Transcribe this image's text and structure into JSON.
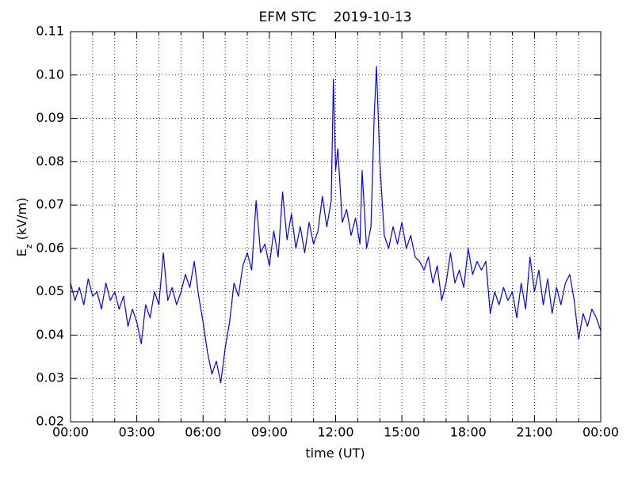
{
  "chart_data": {
    "type": "line",
    "title": "EFM STC    2019-10-13",
    "xlabel": "time (UT)",
    "ylabel": [
      "E",
      "z",
      " (kV/m)"
    ],
    "color": "#0000ff",
    "x": [
      0,
      0.2,
      0.4,
      0.6,
      0.8,
      1.0,
      1.2,
      1.4,
      1.6,
      1.8,
      2.0,
      2.2,
      2.4,
      2.6,
      2.8,
      3.0,
      3.2,
      3.4,
      3.6,
      3.8,
      4.0,
      4.2,
      4.4,
      4.6,
      4.8,
      5.0,
      5.2,
      5.4,
      5.6,
      5.8,
      6.0,
      6.2,
      6.4,
      6.6,
      6.8,
      7.0,
      7.2,
      7.4,
      7.6,
      7.8,
      8.0,
      8.2,
      8.4,
      8.6,
      8.8,
      9.0,
      9.2,
      9.4,
      9.6,
      9.8,
      10.0,
      10.2,
      10.4,
      10.6,
      10.8,
      11.0,
      11.2,
      11.4,
      11.6,
      11.8,
      11.9,
      12.0,
      12.1,
      12.3,
      12.5,
      12.7,
      12.9,
      13.1,
      13.2,
      13.4,
      13.6,
      13.75,
      13.85,
      14.0,
      14.2,
      14.4,
      14.6,
      14.8,
      15.0,
      15.2,
      15.4,
      15.6,
      15.8,
      16.0,
      16.2,
      16.4,
      16.6,
      16.8,
      17.0,
      17.2,
      17.4,
      17.6,
      17.8,
      18.0,
      18.2,
      18.4,
      18.6,
      18.8,
      19.0,
      19.2,
      19.4,
      19.6,
      19.8,
      20.0,
      20.2,
      20.4,
      20.6,
      20.8,
      21.0,
      21.2,
      21.4,
      21.6,
      21.8,
      22.0,
      22.2,
      22.4,
      22.6,
      22.8,
      23.0,
      23.2,
      23.4,
      23.6,
      23.8,
      24.0
    ],
    "values": [
      0.052,
      0.048,
      0.051,
      0.047,
      0.053,
      0.049,
      0.05,
      0.046,
      0.052,
      0.048,
      0.05,
      0.046,
      0.049,
      0.042,
      0.046,
      0.043,
      0.038,
      0.047,
      0.044,
      0.05,
      0.047,
      0.059,
      0.048,
      0.051,
      0.047,
      0.05,
      0.054,
      0.051,
      0.057,
      0.049,
      0.043,
      0.036,
      0.031,
      0.034,
      0.029,
      0.037,
      0.043,
      0.052,
      0.049,
      0.056,
      0.059,
      0.055,
      0.071,
      0.059,
      0.061,
      0.056,
      0.064,
      0.058,
      0.073,
      0.062,
      0.068,
      0.06,
      0.065,
      0.059,
      0.066,
      0.061,
      0.064,
      0.072,
      0.065,
      0.071,
      0.099,
      0.078,
      0.083,
      0.066,
      0.069,
      0.063,
      0.067,
      0.061,
      0.078,
      0.06,
      0.065,
      0.091,
      0.102,
      0.08,
      0.063,
      0.06,
      0.065,
      0.061,
      0.066,
      0.06,
      0.063,
      0.058,
      0.057,
      0.055,
      0.058,
      0.052,
      0.056,
      0.048,
      0.052,
      0.059,
      0.052,
      0.055,
      0.051,
      0.06,
      0.054,
      0.057,
      0.055,
      0.057,
      0.045,
      0.05,
      0.047,
      0.051,
      0.048,
      0.05,
      0.044,
      0.052,
      0.046,
      0.058,
      0.05,
      0.055,
      0.047,
      0.053,
      0.045,
      0.051,
      0.047,
      0.052,
      0.054,
      0.048,
      0.039,
      0.045,
      0.042,
      0.046,
      0.044,
      0.041
    ],
    "xlim": [
      0,
      24
    ],
    "xticks": [
      {
        "value": 0,
        "label": "00:00"
      },
      {
        "value": 3,
        "label": "03:00"
      },
      {
        "value": 6,
        "label": "06:00"
      },
      {
        "value": 9,
        "label": "09:00"
      },
      {
        "value": 12,
        "label": "12:00"
      },
      {
        "value": 15,
        "label": "15:00"
      },
      {
        "value": 18,
        "label": "18:00"
      },
      {
        "value": 21,
        "label": "21:00"
      },
      {
        "value": 24,
        "label": "00:00"
      }
    ],
    "xminorticks": [
      1,
      2,
      4,
      5,
      7,
      8,
      10,
      11,
      13,
      14,
      16,
      17,
      19,
      20,
      22,
      23
    ],
    "ylim": [
      0.02,
      0.11
    ],
    "yticks": [
      0.02,
      0.03,
      0.04,
      0.05,
      0.06,
      0.07,
      0.08,
      0.09,
      {
        "value": 0.1,
        "label": "0.10"
      },
      0.11
    ],
    "grid": true
  }
}
